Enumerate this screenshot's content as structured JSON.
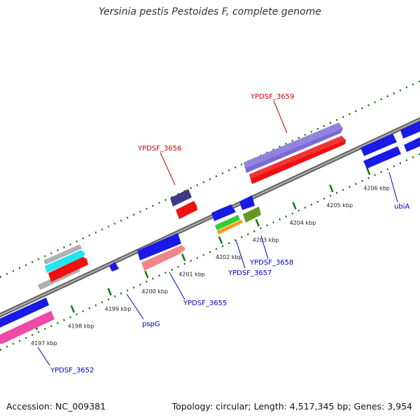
{
  "title": "Yersinia pestis Pestoides F, complete genome",
  "footer": {
    "accession": "Accession: NC_009381",
    "summary": "Topology: circular; Length: 4,517,345 bp; Genes: 3,954"
  },
  "ticks": [
    {
      "label": "4197 kbp",
      "kbp": 4197
    },
    {
      "label": "4198 kbp",
      "kbp": 4198
    },
    {
      "label": "4199 kbp",
      "kbp": 4199
    },
    {
      "label": "4200 kbp",
      "kbp": 4200
    },
    {
      "label": "4201 kbp",
      "kbp": 4201
    },
    {
      "label": "4202 kbp",
      "kbp": 4202
    },
    {
      "label": "4203 kbp",
      "kbp": 4203
    },
    {
      "label": "4204 kbp",
      "kbp": 4204
    },
    {
      "label": "4205 kbp",
      "kbp": 4205
    },
    {
      "label": "4206 kbp",
      "kbp": 4206
    }
  ],
  "gene_labels": [
    {
      "text": "YPDSF_3659",
      "color": "#cc0000"
    },
    {
      "text": "YPDSF_3656",
      "color": "#cc0000"
    },
    {
      "text": "YPDSF_3652",
      "color": "#0000cc"
    },
    {
      "text": "pspG",
      "color": "#0000cc"
    },
    {
      "text": "YPDSF_3655",
      "color": "#0000cc"
    },
    {
      "text": "YPDSF_3657",
      "color": "#0000cc"
    },
    {
      "text": "YPDSF_3658",
      "color": "#0000cc"
    },
    {
      "text": "ubiA",
      "color": "#0000cc"
    }
  ],
  "colors": {
    "backbone": "#777777",
    "tick_green": "#117711",
    "cds_blue": "#1a1ae6",
    "cds_red": "#ee1111",
    "cds_purple": "#7a6ad6",
    "cds_navy": "#3a3a86",
    "cds_pink": "#ee4aa8",
    "cds_salmon": "#ee8888",
    "cds_cyan": "#22e6ee",
    "cds_gray": "#b0b0b0",
    "cds_green": "#33cc33",
    "cds_orange": "#ff9911",
    "cds_olive": "#669922"
  }
}
